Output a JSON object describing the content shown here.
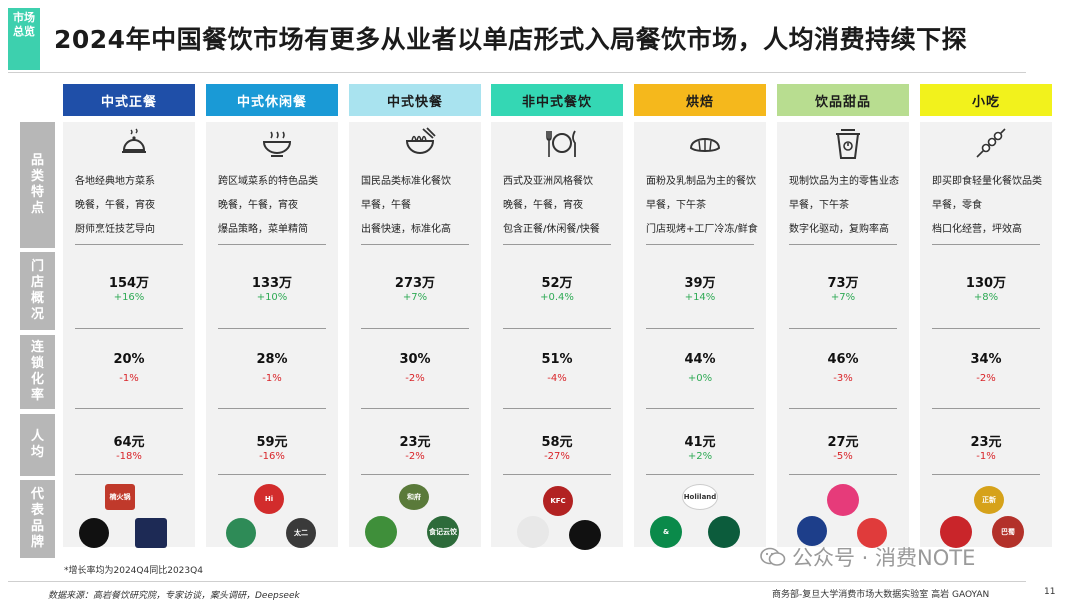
{
  "section_tag": [
    "市场",
    "总览"
  ],
  "title": "2024年中国餐饮市场有更多从业者以单店形式入局餐饮市场，人均消费持续下探",
  "row_labels": [
    "品类特点",
    "门店概况",
    "连锁化率",
    "人均",
    "代表品牌"
  ],
  "columns": [
    {
      "name": "中式正餐",
      "head_bg": "#1f4fa8",
      "head_fg": "#ffffff",
      "icon": "cloche-icon",
      "desc": [
        "各地经典地方菜系",
        "晚餐，午餐，宵夜",
        "厨师烹饪技艺导向"
      ],
      "stores": "154万",
      "stores_chg": "+16%",
      "chain": "20%",
      "chain_chg": "-1%",
      "per_capita": "64元",
      "per_capita_chg": "-18%"
    },
    {
      "name": "中式休闲餐",
      "head_bg": "#1a9ad6",
      "head_fg": "#ffffff",
      "icon": "hotpot-icon",
      "desc": [
        "跨区域菜系的特色品类",
        "晚餐，午餐，宵夜",
        "爆品策略，菜单精简"
      ],
      "stores": "133万",
      "stores_chg": "+10%",
      "chain": "28%",
      "chain_chg": "-1%",
      "per_capita": "59元",
      "per_capita_chg": "-16%"
    },
    {
      "name": "中式快餐",
      "head_bg": "#a9e3ef",
      "head_fg": "#1b1b1b",
      "icon": "noodle-bowl-icon",
      "desc": [
        "国民品类标准化餐饮",
        "早餐，午餐",
        "出餐快速，标准化高"
      ],
      "stores": "273万",
      "stores_chg": "+7%",
      "chain": "30%",
      "chain_chg": "-2%",
      "per_capita": "23元",
      "per_capita_chg": "-2%"
    },
    {
      "name": "非中式餐饮",
      "head_bg": "#34d7b4",
      "head_fg": "#1b1b1b",
      "icon": "fork-knife-icon",
      "desc": [
        "西式及亚洲风格餐饮",
        "晚餐，午餐，宵夜",
        "包含正餐/休闲餐/快餐"
      ],
      "stores": "52万",
      "stores_chg": "+0.4%",
      "chain": "51%",
      "chain_chg": "-4%",
      "per_capita": "58元",
      "per_capita_chg": "-27%"
    },
    {
      "name": "烘焙",
      "head_bg": "#f5b81c",
      "head_fg": "#1b1b1b",
      "icon": "croissant-icon",
      "desc": [
        "面粉及乳制品为主的餐饮",
        "早餐，下午茶",
        "门店现烤+工厂冷冻/鲜食"
      ],
      "stores": "39万",
      "stores_chg": "+14%",
      "chain": "44%",
      "chain_chg": "+0%",
      "per_capita": "41元",
      "per_capita_chg": "+2%"
    },
    {
      "name": "饮品甜品",
      "head_bg": "#b8dd90",
      "head_fg": "#1b1b1b",
      "icon": "drink-cup-icon",
      "desc": [
        "现制饮品为主的零售业态",
        "早餐，下午茶",
        "数字化驱动，复购率高"
      ],
      "stores": "73万",
      "stores_chg": "+7%",
      "chain": "46%",
      "chain_chg": "-3%",
      "per_capita": "27元",
      "per_capita_chg": "-5%"
    },
    {
      "name": "小吃",
      "head_bg": "#f2f21c",
      "head_fg": "#1b1b1b",
      "icon": "skewer-icon",
      "desc": [
        "即买即食轻量化餐饮品类",
        "早餐，零食",
        "档口化经营，坪效高"
      ],
      "stores": "130万",
      "stores_chg": "+8%",
      "chain": "34%",
      "chain_chg": "-2%",
      "per_capita": "23元",
      "per_capita_chg": "-1%"
    }
  ],
  "brand_logos": [
    [
      "楠火锅",
      "",
      ""
    ],
    [
      "Hi",
      "",
      "太二"
    ],
    [
      "和府",
      "",
      "食记云饺"
    ],
    [
      "KFC",
      "",
      ""
    ],
    [
      "Holiland",
      "&",
      ""
    ],
    [
      "",
      "",
      ""
    ],
    [
      "正新",
      "",
      "巴蜀"
    ]
  ],
  "footnote": "*增长率均为2024Q4同比2023Q4",
  "source": "数据来源：高岩餐饮研究院，专家访谈，案头调研，Deepseek",
  "credit": "商务部-复旦大学消费市场大数据实验室   高岩 GAOYAN",
  "page_number": "11",
  "watermark": "公众号 · 消费NOTE"
}
